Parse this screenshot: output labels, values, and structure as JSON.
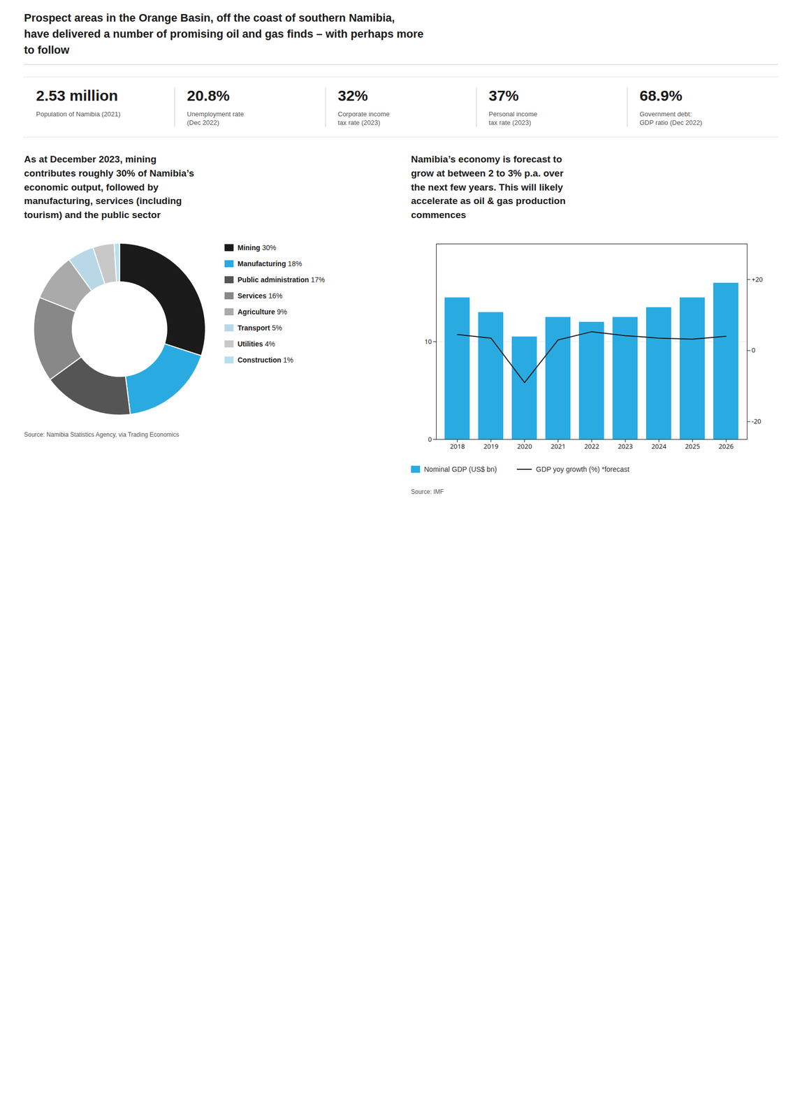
{
  "title": "Prospect areas in the Orange Basin, off the coast of southern Namibia,\nhave delivered a number of promising oil and gas finds – with perhaps more\nto follow",
  "annotations": [
    {
      "value": "2.53 million",
      "label": "Population of Namibia (2021)"
    },
    {
      "value": "20.8%",
      "label": "Unemployment rate\n(Dec 2022)"
    },
    {
      "value": "32%",
      "label": "Corporate income\ntax rate (2023)"
    },
    {
      "value": "37%",
      "label": "Personal income\ntax rate (2023)"
    },
    {
      "value": "68.9%",
      "label": "Government debt:\nGDP ratio (Dec 2022)"
    }
  ],
  "chart_data": [
    {
      "type": "pie",
      "title": "As at December 2023, mining\ncontributes roughly 30% of Namibia’s\neconomic output, followed by\nmanufacturing, services (including\ntourism) and the public sector",
      "categories": [
        "Mining",
        "Manufacturing",
        "Public administration",
        "Services",
        "Agriculture",
        "Transport",
        "Utilities",
        "Construction"
      ],
      "values": [
        30,
        18,
        17,
        16,
        9,
        5,
        4,
        1
      ],
      "value_labels": [
        "30%",
        "18%",
        "17%",
        "16%",
        "9%",
        "5%",
        "4%",
        "1%"
      ],
      "colors": [
        "#1a1a1a",
        "#29abe2",
        "#555555",
        "#888888",
        "#aaaaaa",
        "#b8d8e8",
        "#c8c8c8",
        "#b8dff0"
      ],
      "legend": "right",
      "annotations": [
        "Source: Namibia Statistics Agency, via Trading Economics"
      ]
    },
    {
      "type": "bar",
      "title": "Namibia’s economy is forecast to\ngrow at between 2 to 3% p.a. over\nthe next few years. This will likely\naccelerate as oil & gas production\ncommences",
      "categories": [
        "2018",
        "2019",
        "2020",
        "2021",
        "2022",
        "2023",
        "2024",
        "2025",
        "2026"
      ],
      "series": [
        {
          "name": "Nominal GDP (US$ bn)",
          "type": "bar",
          "color": "#29abe2",
          "values": [
            14.5,
            13.0,
            10.5,
            12.5,
            12.0,
            12.5,
            13.5,
            14.5,
            16.0
          ]
        },
        {
          "name": "GDP yoy growth (%) *forecast",
          "type": "line",
          "color": "#1a1a1a",
          "axis": "y2",
          "values": [
            4.5,
            3.5,
            -9.0,
            3.0,
            5.3,
            4.2,
            3.5,
            3.2,
            4.0
          ]
        }
      ],
      "ylim": [
        0,
        20
      ],
      "yticks": [
        0,
        10
      ],
      "y2lim": [
        -25,
        30
      ],
      "y2ticks": [
        -20,
        0,
        {
          "value": 20,
          "label": "+20"
        }
      ],
      "grid": true,
      "legend": "bottom",
      "annotations": [
        "Source: IMF"
      ]
    }
  ]
}
